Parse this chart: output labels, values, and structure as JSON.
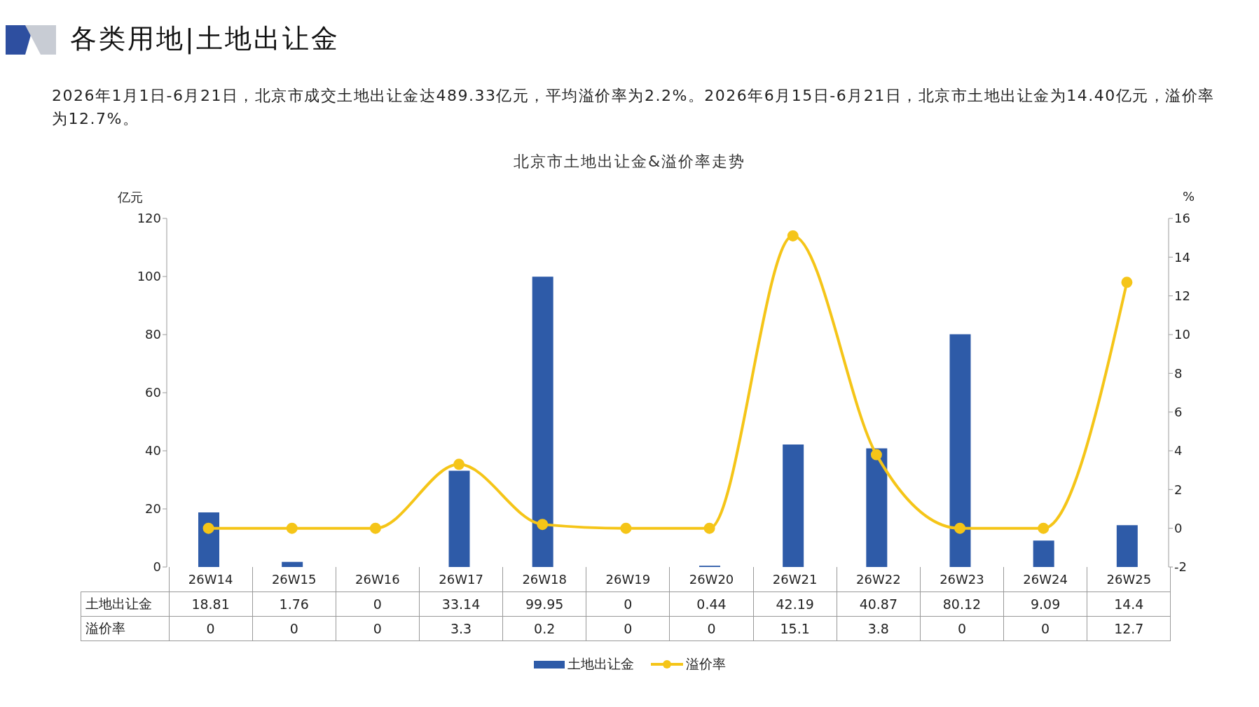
{
  "chart_data": {
    "type": "bar",
    "title": "北京市土地出让金&溢价率走势",
    "ylabel": "亿元",
    "y2label": "%",
    "annotations": [
      "各类用地|土地出让金",
      "2026年1月1日-6月21日，北京市成交土地出让金达489.33亿元，平均溢价率为2.2%。2026年6月15日-6月21日，北京市土地出让金为14.40亿元，溢价率为12.7%。"
    ],
    "categories": [
      "26W14",
      "26W15",
      "26W16",
      "26W17",
      "26W18",
      "26W19",
      "26W20",
      "26W21",
      "26W22",
      "26W23",
      "26W24",
      "26W25"
    ],
    "series": [
      {
        "name": "土地出让金",
        "color": "#2e5ba8",
        "values": [
          18.81,
          1.76,
          0,
          33.14,
          99.95,
          0,
          0.44,
          42.19,
          40.87,
          80.12,
          9.09,
          14.4
        ]
      },
      {
        "name": "溢价率",
        "type": "line",
        "axis": "y2",
        "color": "#f5c518",
        "values": [
          0,
          0,
          0,
          3.3,
          0.2,
          0,
          0,
          15.1,
          3.8,
          0,
          0,
          12.7
        ]
      }
    ],
    "ylim": [
      0,
      120
    ],
    "yticks": [
      0,
      20,
      40,
      60,
      80,
      100,
      120
    ],
    "y2lim": [
      -2,
      16
    ],
    "y2ticks": [
      -2,
      0,
      2,
      4,
      6,
      8,
      10,
      12,
      14,
      16
    ],
    "marker": "circle",
    "line_style": "solid",
    "legend": "bottom",
    "data_labels": true
  }
}
